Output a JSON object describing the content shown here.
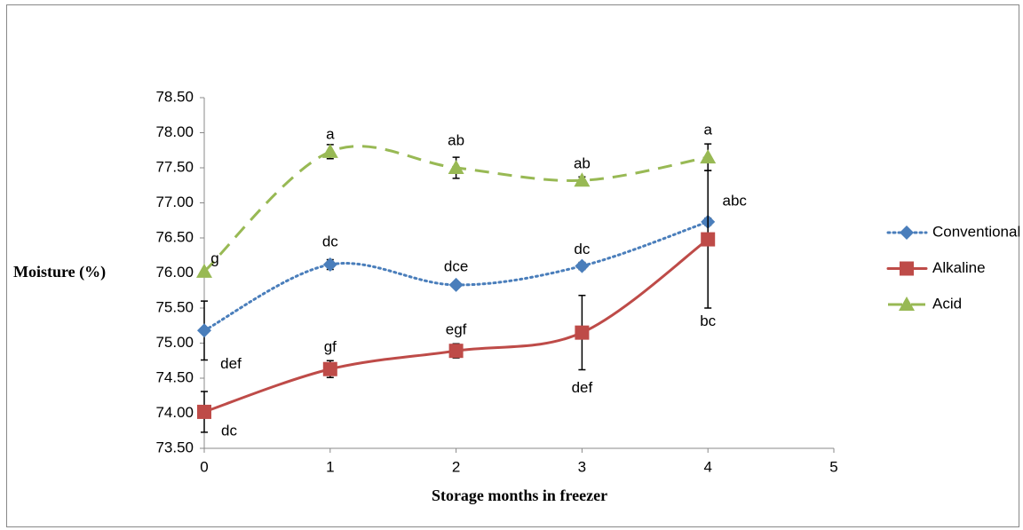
{
  "chart_data": {
    "type": "line",
    "x_label": "Storage months in freezer",
    "y_label": "Moisture (%)",
    "x": [
      0,
      1,
      2,
      3,
      4
    ],
    "xlim": [
      0,
      5
    ],
    "xticks": [
      0,
      1,
      2,
      3,
      4,
      5
    ],
    "ylim": [
      73.5,
      78.5
    ],
    "yticks": [
      {
        "value": 73.5,
        "label": "73.50"
      },
      {
        "value": 74,
        "label": "74.00"
      },
      {
        "value": 74.5,
        "label": "74.50"
      },
      {
        "value": 75,
        "label": "75.00"
      },
      {
        "value": 75.5,
        "label": "75.50"
      },
      {
        "value": 76,
        "label": "76.00"
      },
      {
        "value": 76.5,
        "label": "76.50"
      },
      {
        "value": 77,
        "label": "77.00"
      },
      {
        "value": 77.5,
        "label": "77.50"
      },
      {
        "value": 78,
        "label": "78.00"
      },
      {
        "value": 78.5,
        "label": "78.50"
      }
    ],
    "grid": false,
    "legend": "right",
    "smooth": true,
    "series": [
      {
        "name": "Conventional",
        "color": "#4a7ebb",
        "line_style": "dotted",
        "marker": "diamond",
        "values": [
          75.18,
          76.12,
          75.83,
          76.1,
          76.73
        ],
        "errors": [
          0.42,
          0.07,
          0.03,
          0.05,
          0.05
        ],
        "labels": [
          "def",
          "dc",
          "dce",
          "dc",
          "abc"
        ]
      },
      {
        "name": "Alkaline",
        "color": "#be4b48",
        "line_style": "solid",
        "marker": "square",
        "values": [
          74.02,
          74.63,
          74.89,
          75.15,
          76.48
        ],
        "errors": [
          0.29,
          0.12,
          0.1,
          0.53,
          0.98
        ],
        "labels": [
          "dc",
          "gf",
          "egf",
          "def",
          "bc"
        ]
      },
      {
        "name": "Acid",
        "color": "#98b954",
        "line_style": "dashed",
        "marker": "triangle",
        "values": [
          76.02,
          77.73,
          77.5,
          77.32,
          77.65
        ],
        "errors": [
          0,
          0.1,
          0.15,
          0.05,
          0.19
        ],
        "labels": [
          "g",
          "a",
          "ab",
          "ab",
          "a"
        ]
      }
    ]
  }
}
